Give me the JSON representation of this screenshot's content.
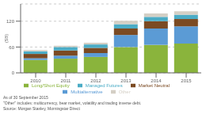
{
  "chart_data": {
    "type": "bar",
    "stacked": true,
    "grid": true,
    "legend": "bottom",
    "ylabel": "($B)",
    "categories": [
      "2010",
      "2011",
      "2012",
      "2013",
      "2014",
      "2015"
    ],
    "series": [
      {
        "name": "Long/Short Equity",
        "color": "#8ab43c",
        "values": [
          30,
          33,
          37,
          60,
          65,
          68
        ]
      },
      {
        "name": "Multialternative",
        "color": "#5b9bd5",
        "values": [
          4,
          7,
          9,
          28,
          38,
          40
        ]
      },
      {
        "name": "Market Neutral",
        "color": "#7b4a22",
        "values": [
          10,
          12,
          12,
          15,
          17,
          17
        ]
      },
      {
        "name": "Managed Futures",
        "color": "#4bacc6",
        "values": [
          6,
          8,
          8,
          10,
          10,
          10
        ]
      },
      {
        "name": "Other",
        "color": "#d4cfc5",
        "values": [
          3,
          3,
          4,
          8,
          8,
          8
        ]
      }
    ],
    "ylim": [
      0,
      160
    ],
    "yticks": [
      0,
      60,
      120
    ],
    "annotations": [
      "As of 30 September 2015",
      "\"Other\" includes: multicurrency, bear market, volatility and trading inverse debt.",
      "Source: Morgan Stanley, Morningstar Direct"
    ]
  }
}
